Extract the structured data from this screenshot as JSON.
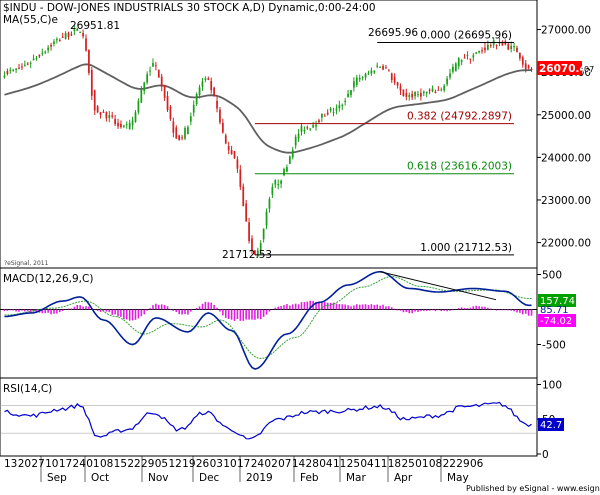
{
  "header": {
    "title": "$INDU - DOW-JONES INDUSTRIALS 30 STOCK A,D) Dynamic,0:00-24:00",
    "ma_label": "MA(55,C)e",
    "watermark": "?eSignal, 2011"
  },
  "footer": {
    "credit": "Published by eSignal - www.esignal.com"
  },
  "colors": {
    "bull": "#1a9e1a",
    "bear": "#d42020",
    "ma": "#606060",
    "fib_0": "#000000",
    "fib_382": "#a00000",
    "fib_618": "#0a8a0a",
    "fib_1": "#000000",
    "macd": "#00209a",
    "signal": "#3aa33a",
    "hist": "#e020e0",
    "rsi": "#0000cc",
    "price_tag": "#ff0000",
    "macd_tag": "#00a000",
    "hist_tag": "#ff00ff",
    "rsi_tag": "#0000cc"
  },
  "chart_data": [
    {
      "type": "candlestick",
      "panel": "price",
      "ylim": [
        21450,
        27600
      ],
      "y_ticks": [
        "27000.00",
        "26000.00",
        "25000.00",
        "24000.00",
        "23000.00",
        "22000.00"
      ],
      "x_tick_labels": [
        "13",
        "20",
        "27",
        "10",
        "17",
        "24",
        "01",
        "08",
        "15",
        "22",
        "29",
        "05",
        "12",
        "19",
        "26",
        "03",
        "10",
        "17",
        "24",
        "02",
        "07",
        "14",
        "28",
        "04",
        "11",
        "25",
        "04",
        "11",
        "18",
        "25",
        "01",
        "08",
        "22",
        "29",
        "06"
      ],
      "x_month_labels": [
        "Sep",
        "Oct",
        "Nov",
        "Dec",
        "2019",
        "Feb",
        "Mar",
        "Apr",
        "May"
      ],
      "ohlc_daily_closes_anchors": [
        {
          "date": "Aug 28",
          "value": 26000
        },
        {
          "date": "Oct 3",
          "value": 26951.81
        },
        {
          "date": "Oct 11",
          "value": 25050
        },
        {
          "date": "Oct 25",
          "value": 24700
        },
        {
          "date": "Nov 7",
          "value": 26150
        },
        {
          "date": "Nov 20",
          "value": 24450
        },
        {
          "date": "Dec 3",
          "value": 25800
        },
        {
          "date": "Dec 14",
          "value": 24100
        },
        {
          "date": "Dec 26",
          "value": 21712.53
        },
        {
          "date": "Jan 4",
          "value": 23400
        },
        {
          "date": "Jan 18",
          "value": 24700
        },
        {
          "date": "Feb 1",
          "value": 25100
        },
        {
          "date": "Feb 15",
          "value": 25900
        },
        {
          "date": "Feb 25",
          "value": 26150
        },
        {
          "date": "Mar 8",
          "value": 25450
        },
        {
          "date": "Mar 22",
          "value": 25550
        },
        {
          "date": "Apr 5",
          "value": 26350
        },
        {
          "date": "Apr 23",
          "value": 26695.96
        },
        {
          "date": "Apr 30",
          "value": 26550
        },
        {
          "date": "May 7",
          "value": 26070.43
        }
      ],
      "ma_name": "MA(55,C)e",
      "annotations": {
        "high_label": "26951.81",
        "low_label": "21712.53",
        "recent_high_label": "26695.96",
        "last_price": "26070.43",
        "last_price_suffix": "07"
      },
      "fib_levels": [
        {
          "label": "0.000 (26695.96)",
          "value": 26695.96
        },
        {
          "label": "0.382 (24792.2897)",
          "value": 24792.2897
        },
        {
          "label": "0.618 (23616.2003)",
          "value": 23616.2003
        },
        {
          "label": "1.000 (21712.53)",
          "value": 21712.53
        }
      ]
    },
    {
      "type": "line",
      "panel": "macd",
      "title": "MACD(12,26,9,C)",
      "ylim": [
        -950,
        550
      ],
      "y_ticks": [
        "500",
        "-500"
      ],
      "series": [
        {
          "name": "MACD",
          "anchors": [
            {
              "date": "Aug 28",
              "value": -100
            },
            {
              "date": "Sep 10",
              "value": -50
            },
            {
              "date": "Sep 25",
              "value": 120
            },
            {
              "date": "Oct 3",
              "value": 180
            },
            {
              "date": "Oct 15",
              "value": -150
            },
            {
              "date": "Oct 29",
              "value": -500
            },
            {
              "date": "Nov 8",
              "value": -120
            },
            {
              "date": "Nov 23",
              "value": -320
            },
            {
              "date": "Dec 4",
              "value": -50
            },
            {
              "date": "Dec 14",
              "value": -300
            },
            {
              "date": "Dec 26",
              "value": -850
            },
            {
              "date": "Jan 10",
              "value": -350
            },
            {
              "date": "Jan 25",
              "value": 100
            },
            {
              "date": "Feb 8",
              "value": 350
            },
            {
              "date": "Feb 25",
              "value": 540
            },
            {
              "date": "Mar 10",
              "value": 300
            },
            {
              "date": "Mar 25",
              "value": 250
            },
            {
              "date": "Apr 10",
              "value": 300
            },
            {
              "date": "Apr 25",
              "value": 260
            },
            {
              "date": "May 7",
              "value": 60
            }
          ]
        },
        {
          "name": "Signal",
          "anchors": [
            {
              "date": "Aug 28",
              "value": -80
            },
            {
              "date": "Sep 20",
              "value": 20
            },
            {
              "date": "Oct 5",
              "value": 120
            },
            {
              "date": "Oct 20",
              "value": -100
            },
            {
              "date": "Nov 2",
              "value": -350
            },
            {
              "date": "Nov 15",
              "value": -200
            },
            {
              "date": "Nov 30",
              "value": -250
            },
            {
              "date": "Dec 10",
              "value": -150
            },
            {
              "date": "Dec 28",
              "value": -700
            },
            {
              "date": "Jan 15",
              "value": -400
            },
            {
              "date": "Jan 30",
              "value": 60
            },
            {
              "date": "Feb 15",
              "value": 320
            },
            {
              "date": "Mar 1",
              "value": 470
            },
            {
              "date": "Mar 15",
              "value": 330
            },
            {
              "date": "Apr 1",
              "value": 260
            },
            {
              "date": "Apr 20",
              "value": 280
            },
            {
              "date": "May 7",
              "value": 157.74
            }
          ]
        }
      ],
      "histogram_anchors": [
        {
          "date": "Aug 28",
          "value": -20
        },
        {
          "date": "Sep 20",
          "value": -60
        },
        {
          "date": "Oct 3",
          "value": 60
        },
        {
          "date": "Oct 15",
          "value": -40
        },
        {
          "date": "Oct 29",
          "value": -150
        },
        {
          "date": "Nov 9",
          "value": 80
        },
        {
          "date": "Nov 22",
          "value": -70
        },
        {
          "date": "Dec 4",
          "value": 110
        },
        {
          "date": "Dec 14",
          "value": -150
        },
        {
          "date": "Dec 26",
          "value": -150
        },
        {
          "date": "Jan 8",
          "value": 60
        },
        {
          "date": "Jan 25",
          "value": 120
        },
        {
          "date": "Feb 8",
          "value": 60
        },
        {
          "date": "Feb 25",
          "value": 70
        },
        {
          "date": "Mar 10",
          "value": -40
        },
        {
          "date": "Mar 25",
          "value": -20
        },
        {
          "date": "Apr 10",
          "value": 40
        },
        {
          "date": "Apr 25",
          "value": -10
        },
        {
          "date": "May 7",
          "value": -74.02
        }
      ],
      "trendline": [
        {
          "date": "Feb 25",
          "value": 540
        },
        {
          "date": "May 14",
          "value": 140
        }
      ],
      "last_values": {
        "macd": "157.74",
        "hist": "-74.02",
        "overlap": "85.71"
      }
    },
    {
      "type": "line",
      "panel": "rsi",
      "title": "RSI(14,C)",
      "ylim": [
        0,
        105
      ],
      "y_ticks": [
        "100",
        "50",
        "0"
      ],
      "series": [
        {
          "name": "RSI",
          "anchors": [
            {
              "date": "Aug 28",
              "value": 60
            },
            {
              "date": "Sep 10",
              "value": 55
            },
            {
              "date": "Sep 25",
              "value": 65
            },
            {
              "date": "Oct 3",
              "value": 70
            },
            {
              "date": "Oct 11",
              "value": 25
            },
            {
              "date": "Oct 25",
              "value": 35
            },
            {
              "date": "Nov 7",
              "value": 60
            },
            {
              "date": "Nov 20",
              "value": 35
            },
            {
              "date": "Dec 3",
              "value": 60
            },
            {
              "date": "Dec 14",
              "value": 35
            },
            {
              "date": "Dec 24",
              "value": 20
            },
            {
              "date": "Jan 7",
              "value": 50
            },
            {
              "date": "Jan 20",
              "value": 60
            },
            {
              "date": "Feb 5",
              "value": 62
            },
            {
              "date": "Feb 25",
              "value": 68
            },
            {
              "date": "Mar 8",
              "value": 50
            },
            {
              "date": "Mar 22",
              "value": 55
            },
            {
              "date": "Apr 5",
              "value": 68
            },
            {
              "date": "Apr 23",
              "value": 72
            },
            {
              "date": "May 7",
              "value": 42.7
            }
          ]
        }
      ],
      "last_value": "42.7"
    }
  ]
}
